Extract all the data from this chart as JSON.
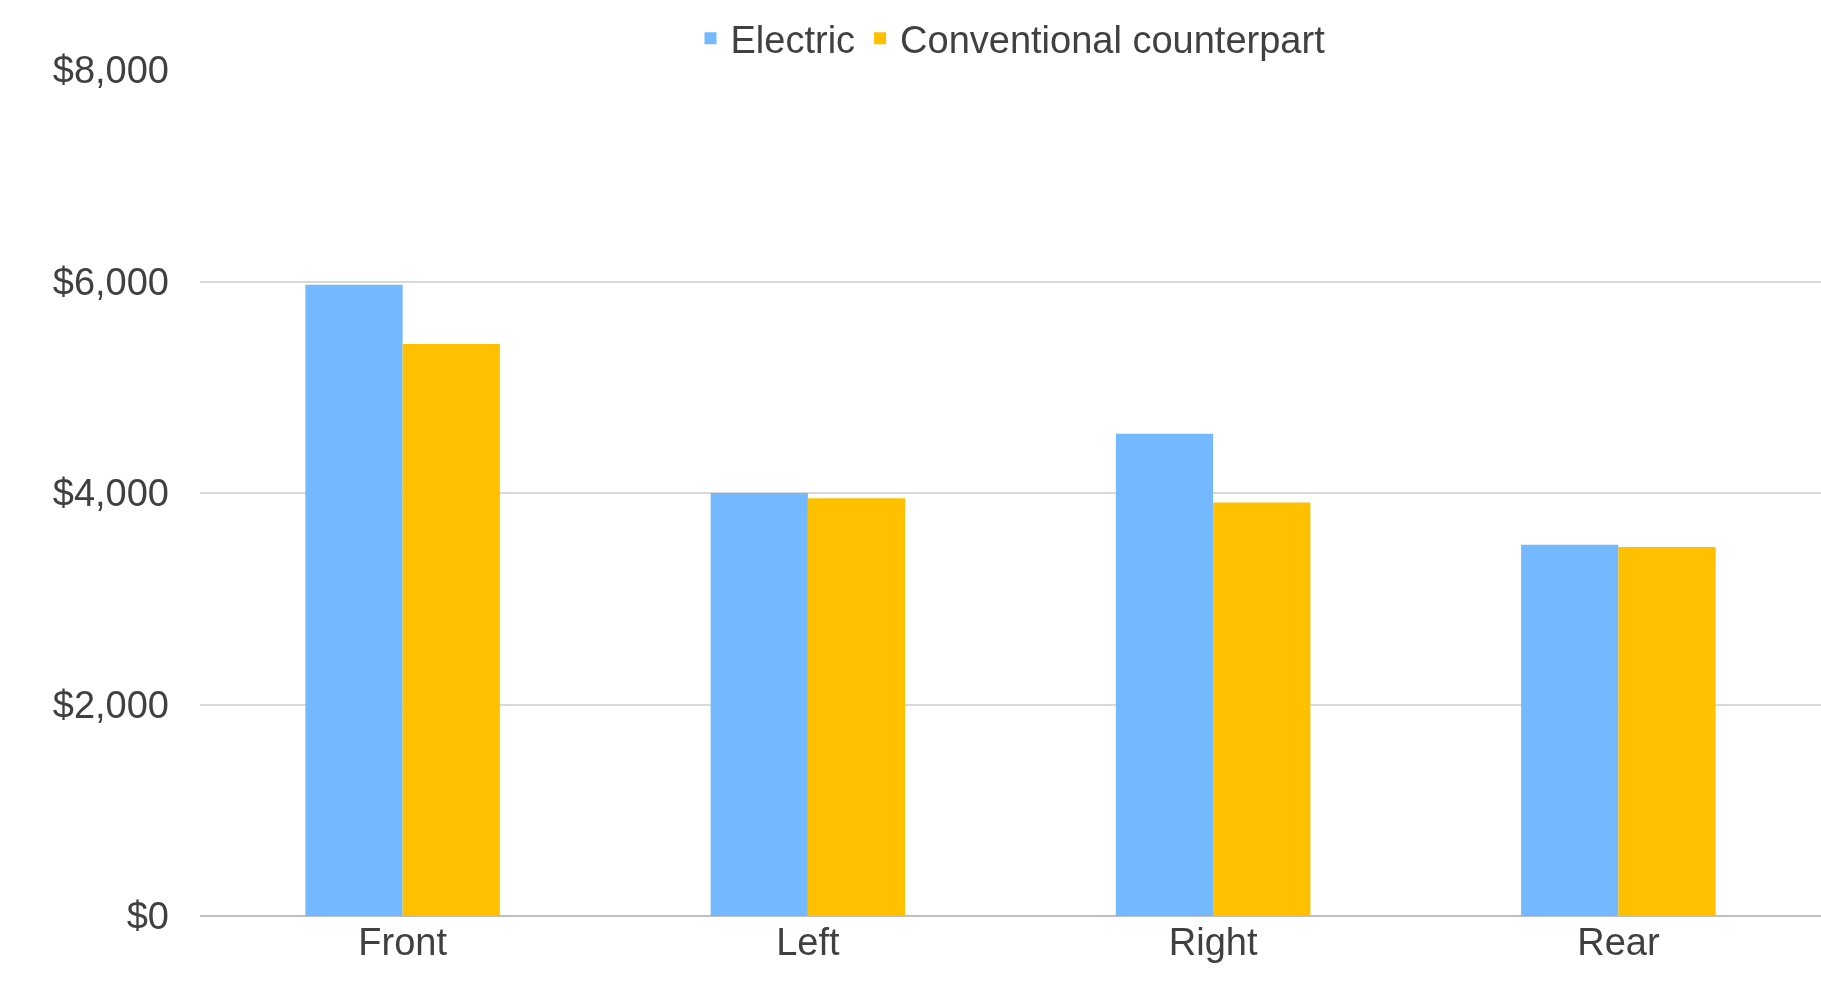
{
  "chart_data": {
    "type": "bar",
    "categories": [
      "Front",
      "Left",
      "Right",
      "Rear"
    ],
    "series": [
      {
        "name": "Electric",
        "color": "#74b8fe",
        "values": [
          5970,
          4000,
          4560,
          3510
        ]
      },
      {
        "name": "Conventional counterpart",
        "color": "#ffc000",
        "values": [
          5410,
          3950,
          3910,
          3490
        ]
      }
    ],
    "ylim": [
      0,
      8000
    ],
    "yticks": [
      {
        "value": 0,
        "label": "$0"
      },
      {
        "value": 2000,
        "label": "$2,000"
      },
      {
        "value": 4000,
        "label": "$4,000"
      },
      {
        "value": 6000,
        "label": "$6,000"
      },
      {
        "value": 8000,
        "label": "$8,000"
      }
    ],
    "grid": "y",
    "legend": "top"
  }
}
